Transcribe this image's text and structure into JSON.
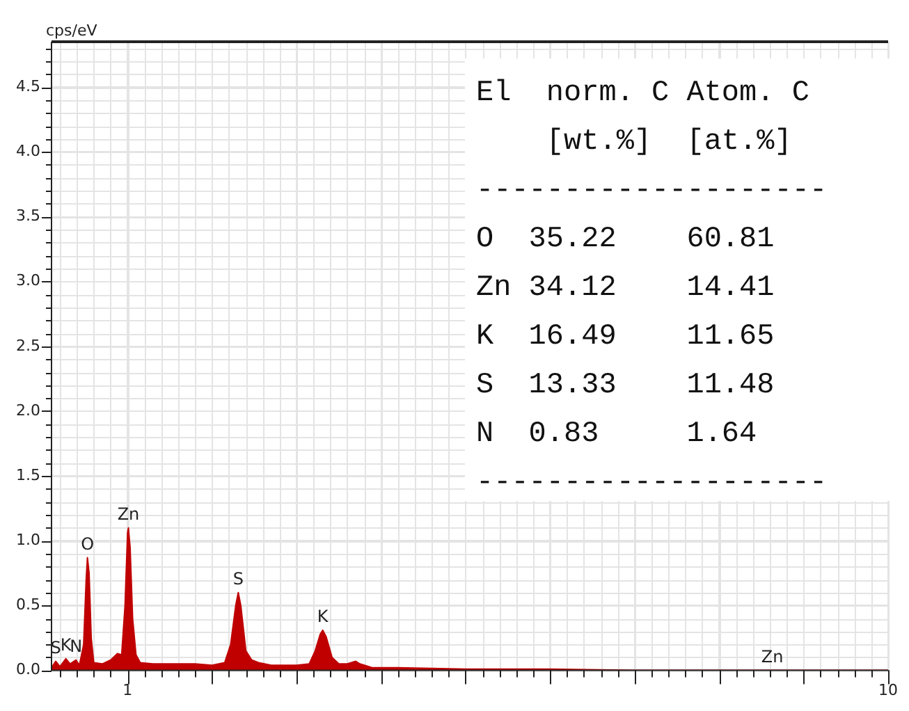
{
  "chart_data": {
    "type": "area",
    "ylabel": "cps/eV",
    "xlim": [
      0.1,
      10
    ],
    "xticks": [
      {
        "value": 1,
        "label": "1"
      },
      {
        "value": 2,
        "label": null
      },
      {
        "value": 3,
        "label": null
      },
      {
        "value": 4,
        "label": null
      },
      {
        "value": 5,
        "label": null
      },
      {
        "value": 6,
        "label": null
      },
      {
        "value": 7,
        "label": null
      },
      {
        "value": 8,
        "label": null
      },
      {
        "value": 9,
        "label": null
      },
      {
        "value": 10,
        "label": "10"
      }
    ],
    "ylim": [
      0,
      4.85
    ],
    "yticks": [
      {
        "value": 0,
        "label": "0.0"
      },
      {
        "value": 0.5,
        "label": "0.5"
      },
      {
        "value": 1,
        "label": "1.0"
      },
      {
        "value": 1.5,
        "label": "1.5"
      },
      {
        "value": 2,
        "label": "2.0"
      },
      {
        "value": 2.5,
        "label": "2.5"
      },
      {
        "value": 3,
        "label": "3.0"
      },
      {
        "value": 3.5,
        "label": "3.5"
      },
      {
        "value": 4,
        "label": "4.0"
      },
      {
        "value": 4.5,
        "label": "4.5"
      }
    ],
    "grid": true,
    "legend": false,
    "series": [
      {
        "color": "#c00000",
        "x": [
          0.1,
          0.15,
          0.2,
          0.27,
          0.32,
          0.39,
          0.43,
          0.48,
          0.51,
          0.525,
          0.545,
          0.57,
          0.6,
          0.7,
          0.8,
          0.88,
          0.93,
          0.97,
          1.0,
          1.01,
          1.03,
          1.06,
          1.1,
          1.15,
          1.3,
          1.5,
          1.8,
          2.0,
          2.15,
          2.22,
          2.28,
          2.31,
          2.34,
          2.4,
          2.47,
          2.55,
          2.7,
          3.0,
          3.15,
          3.22,
          3.28,
          3.31,
          3.35,
          3.42,
          3.5,
          3.6,
          3.7,
          3.75,
          3.9,
          4.2,
          5,
          6,
          7,
          8,
          8.63,
          10
        ],
        "values": [
          0.02,
          0.07,
          0.03,
          0.09,
          0.05,
          0.08,
          0.04,
          0.2,
          0.7,
          0.87,
          0.75,
          0.25,
          0.06,
          0.05,
          0.08,
          0.13,
          0.12,
          0.5,
          1.06,
          1.1,
          0.95,
          0.4,
          0.12,
          0.06,
          0.05,
          0.05,
          0.05,
          0.04,
          0.06,
          0.2,
          0.5,
          0.6,
          0.5,
          0.15,
          0.08,
          0.06,
          0.04,
          0.04,
          0.05,
          0.15,
          0.28,
          0.31,
          0.26,
          0.1,
          0.05,
          0.05,
          0.07,
          0.05,
          0.02,
          0.02,
          0.01,
          0.01,
          0,
          0,
          0,
          0
        ]
      }
    ],
    "annotations": [
      "El  norm. C Atom. C",
      "    [wt.%]  [at.%]",
      "--------------------",
      "O  35.22    60.81",
      "Zn 34.12    14.41",
      "K  16.49    11.65",
      "S  13.33    11.48",
      "N  0.83     1.64",
      "--------------------",
      {
        "text": "S",
        "x": 0.15,
        "y": 0.07
      },
      {
        "text": "K",
        "x": 0.27,
        "y": 0.09
      },
      {
        "text": "N",
        "x": 0.39,
        "y": 0.08
      },
      {
        "text": "O",
        "x": 0.525,
        "y": 0.87
      },
      {
        "text": "Zn",
        "x": 1.01,
        "y": 1.1
      },
      {
        "text": "S",
        "x": 2.31,
        "y": 0.6
      },
      {
        "text": "K",
        "x": 3.31,
        "y": 0.31
      },
      {
        "text": "Zn",
        "x": 8.63,
        "y": 0
      }
    ]
  }
}
